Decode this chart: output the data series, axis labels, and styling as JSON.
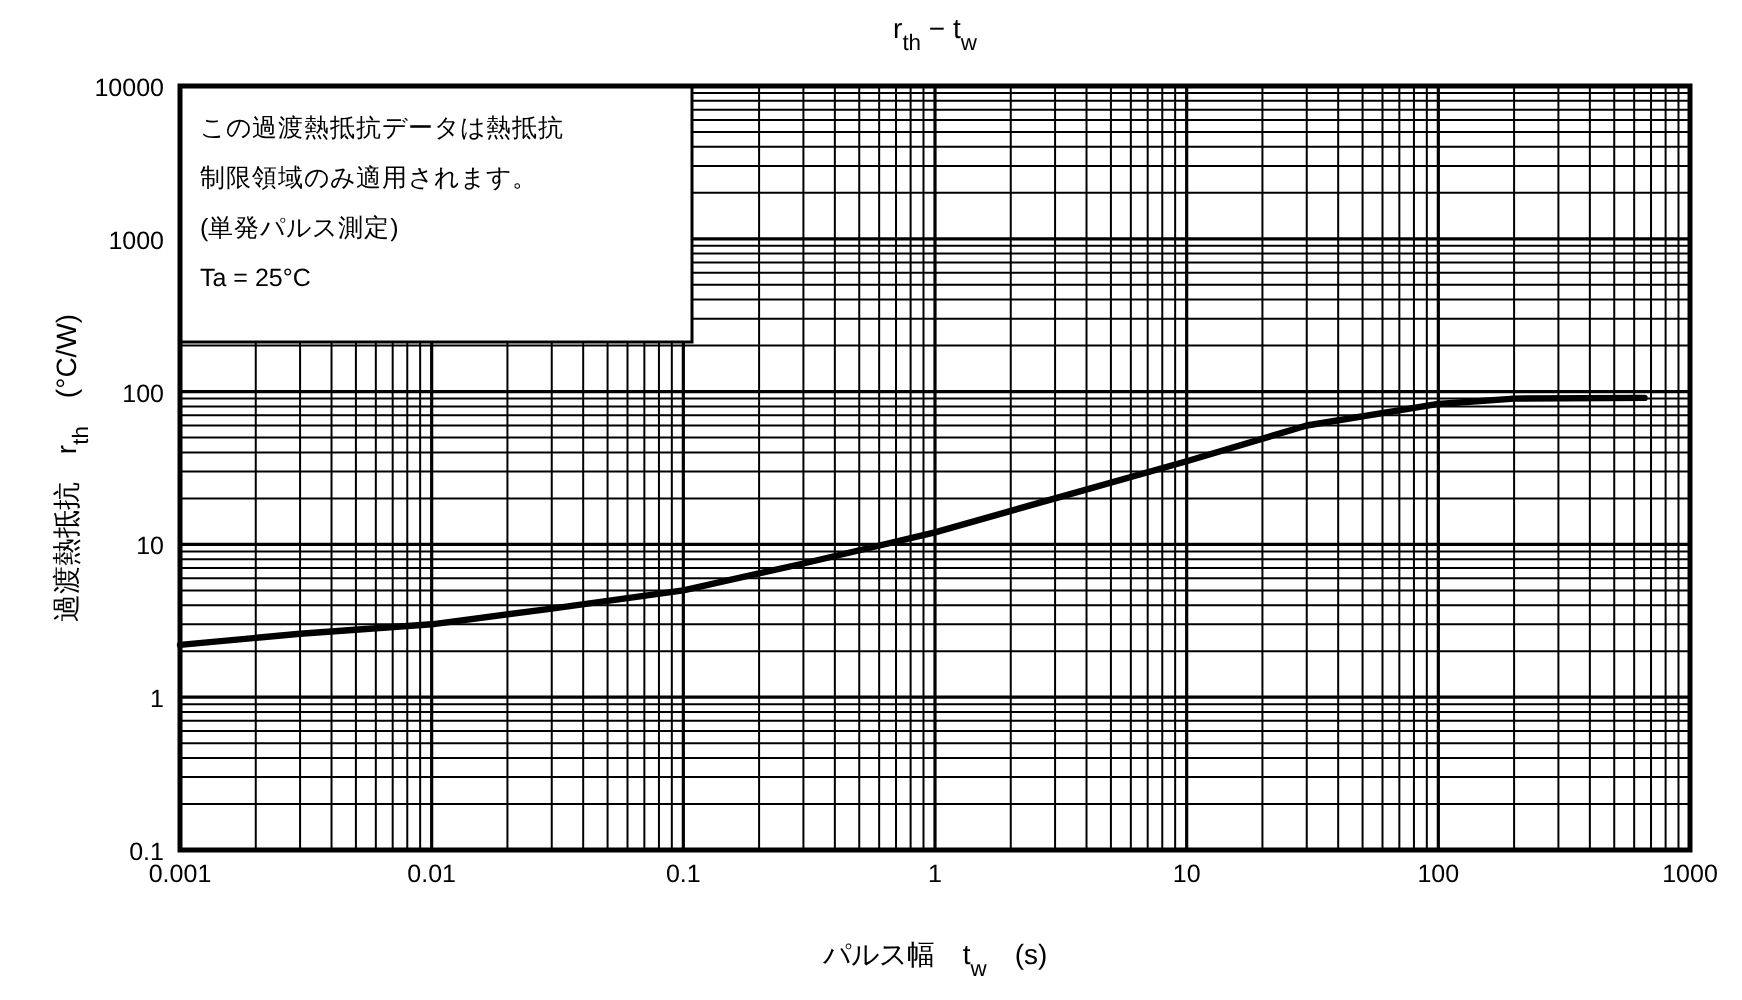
{
  "chart_data": {
    "type": "line",
    "title": "r$_{th}$ − t$_{w}$",
    "xlabel": "パルス幅　t$_{w}$　(s)",
    "ylabel": "過渡熱抵抗　r$_{th}$　(°C/W)",
    "x": [
      0.001,
      0.003,
      0.01,
      0.03,
      0.1,
      0.3,
      1,
      3,
      10,
      30,
      100,
      200,
      660
    ],
    "series": [
      {
        "color": "#000000",
        "values": [
          2.2,
          2.6,
          3.0,
          3.8,
          5.0,
          7.5,
          12,
          20,
          35,
          60,
          83,
          90,
          91
        ]
      }
    ],
    "log": "xy",
    "xlim": [
      0.001,
      1000
    ],
    "ylim": [
      0.1,
      10000
    ],
    "xticks": [
      0.001,
      0.01,
      0.1,
      1,
      10,
      100,
      1000
    ],
    "yticks": [
      0.1,
      1,
      10,
      100,
      1000,
      10000
    ],
    "grid": true,
    "marker": "none",
    "line_style": "solid",
    "annotations": [
      "この過渡熱抵抗データは熱抵抗",
      "制限領域のみ適用されます。",
      "(単発パルス測定)",
      "Ta = 25°C"
    ]
  }
}
